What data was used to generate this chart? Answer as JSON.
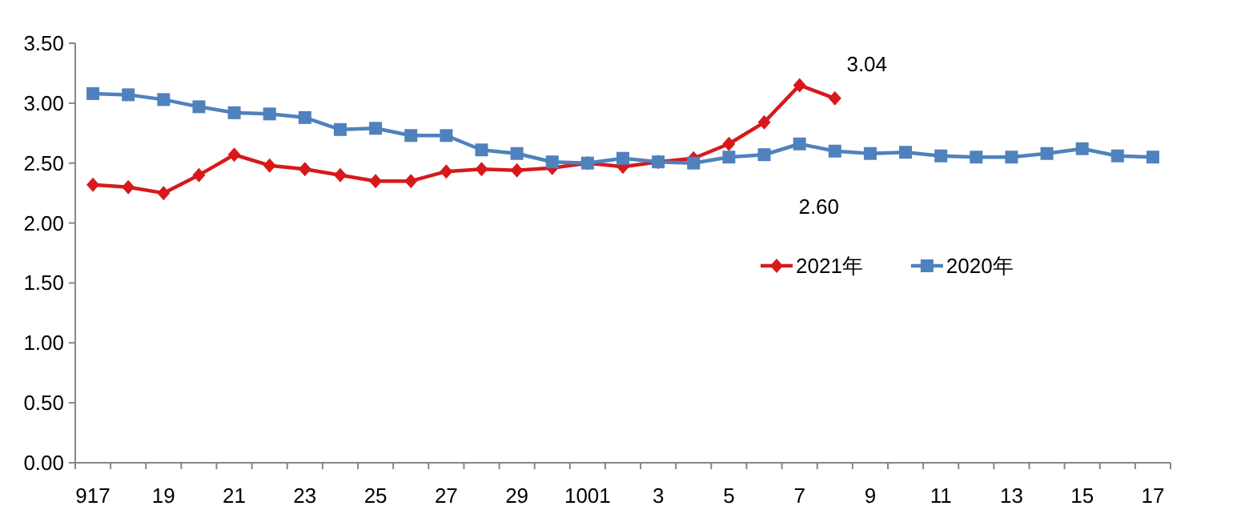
{
  "chart_data": {
    "type": "line",
    "categories": [
      "917",
      null,
      "19",
      null,
      "21",
      null,
      "23",
      null,
      "25",
      null,
      "27",
      null,
      "29",
      null,
      "1001",
      null,
      "3",
      null,
      "5",
      null,
      "7",
      null,
      "9",
      null,
      "11",
      null,
      "13",
      null,
      "15",
      null,
      "17"
    ],
    "ylim": [
      0,
      3.5
    ],
    "yticks": [
      {
        "value": 0,
        "label": "0.00"
      },
      {
        "value": 0.5,
        "label": "0.50"
      },
      {
        "value": 1,
        "label": "1.00"
      },
      {
        "value": 1.5,
        "label": "1.50"
      },
      {
        "value": 2,
        "label": "2.00"
      },
      {
        "value": 2.5,
        "label": "2.50"
      },
      {
        "value": 3,
        "label": "3.00"
      },
      {
        "value": 3.5,
        "label": "3.50"
      }
    ],
    "grid": false,
    "legend": "right",
    "series": [
      {
        "name": "2021年",
        "color": "#d7191c",
        "marker": "diamond",
        "values": [
          2.32,
          2.3,
          2.25,
          2.4,
          2.57,
          2.48,
          2.45,
          2.4,
          2.35,
          2.35,
          2.43,
          2.45,
          2.44,
          2.46,
          2.5,
          2.47,
          2.51,
          2.54,
          2.66,
          2.84,
          3.15,
          3.04,
          null,
          null,
          null,
          null,
          null,
          null,
          null,
          null,
          null
        ],
        "value_labels": [
          null,
          null,
          null,
          null,
          null,
          null,
          null,
          null,
          null,
          null,
          null,
          null,
          null,
          null,
          null,
          null,
          null,
          null,
          null,
          null,
          null,
          "3.04",
          null,
          null,
          null,
          null,
          null,
          null,
          null,
          null,
          null
        ]
      },
      {
        "name": "2020年",
        "color": "#4f81bd",
        "marker": "square",
        "values": [
          3.08,
          3.07,
          3.03,
          2.97,
          2.92,
          2.91,
          2.88,
          2.78,
          2.79,
          2.73,
          2.73,
          2.61,
          2.58,
          2.51,
          2.5,
          2.54,
          2.51,
          2.5,
          2.55,
          2.57,
          2.66,
          2.6,
          2.58,
          2.59,
          2.56,
          2.55,
          2.55,
          2.58,
          2.62,
          2.56,
          2.55
        ],
        "value_labels": [
          null,
          null,
          null,
          null,
          null,
          null,
          null,
          null,
          null,
          null,
          null,
          null,
          null,
          null,
          null,
          null,
          null,
          null,
          null,
          null,
          null,
          "2.60",
          null,
          null,
          null,
          null,
          null,
          null,
          null,
          null,
          null
        ]
      }
    ]
  }
}
